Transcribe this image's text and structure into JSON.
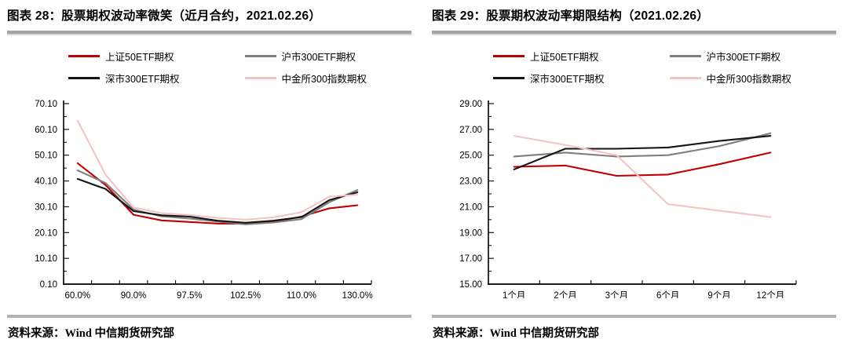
{
  "chart_data": [
    {
      "type": "line",
      "title": "图表 28：股票期权波动率微笑（近月合约，2021.02.26）",
      "source_note": "资料来源：Wind 中信期货研究部",
      "legend_position": "top",
      "grid": false,
      "xlabel": "",
      "ylabel": "",
      "x_tick_labels": [
        "60.0%",
        "",
        "90.0%",
        "",
        "97.5%",
        "",
        "102.5%",
        "",
        "110.0%",
        "",
        "130.0%"
      ],
      "y_axis": {
        "min": 0.1,
        "max": 70.1,
        "major_tick_values": [
          0.1,
          10.1,
          20.1,
          30.1,
          40.1,
          50.1,
          60.1,
          70.1
        ],
        "major_tick_labels": [
          "0.10",
          "10.10",
          "20.10",
          "30.10",
          "40.10",
          "50.10",
          "60.10",
          "70.10"
        ],
        "minor_tick_values": [
          5.1,
          15.1,
          25.1,
          35.1,
          45.1,
          55.1,
          65.1
        ]
      },
      "series": [
        {
          "name": "上证50ETF期权",
          "color": "#C00000",
          "values": [
            47.0,
            38.5,
            27.0,
            24.8,
            24.2,
            23.6,
            23.5,
            24.2,
            26.3,
            29.5,
            30.7
          ]
        },
        {
          "name": "沪市300ETF期权",
          "color": "#7F7F7F",
          "values": [
            44.2,
            39.3,
            29.0,
            26.4,
            25.5,
            24.4,
            23.3,
            24.0,
            25.3,
            31.9,
            36.6
          ]
        },
        {
          "name": "深市300ETF期权",
          "color": "#151515",
          "values": [
            40.9,
            37.0,
            28.4,
            26.8,
            26.3,
            24.7,
            23.9,
            24.7,
            26.1,
            32.7,
            35.7
          ]
        },
        {
          "name": "中金所300指数期权",
          "color": "#F4C3C6",
          "values": [
            63.5,
            42.5,
            29.8,
            27.6,
            26.9,
            25.8,
            25.1,
            26.0,
            28.0,
            34.0,
            34.8
          ]
        }
      ]
    },
    {
      "type": "line",
      "title": "图表 29：股票期权波动率期限结构（2021.02.26）",
      "source_note": "资料来源：Wind 中信期货研究部",
      "legend_position": "top",
      "grid": false,
      "xlabel": "",
      "ylabel": "",
      "x_tick_labels": [
        "1个月",
        "2个月",
        "3个月",
        "6个月",
        "9个月",
        "12个月"
      ],
      "y_axis": {
        "min": 15.0,
        "max": 29.0,
        "major_tick_values": [
          15.0,
          17.0,
          19.0,
          21.0,
          23.0,
          25.0,
          27.0,
          29.0
        ],
        "major_tick_labels": [
          "15.00",
          "17.00",
          "19.00",
          "21.00",
          "23.00",
          "25.00",
          "27.00",
          "29.00"
        ],
        "minor_tick_values": [
          16.0,
          18.0,
          20.0,
          22.0,
          24.0,
          26.0,
          28.0
        ]
      },
      "series": [
        {
          "name": "上证50ETF期权",
          "color": "#C00000",
          "values": [
            24.1,
            24.2,
            23.4,
            23.5,
            24.3,
            25.2
          ]
        },
        {
          "name": "沪市300ETF期权",
          "color": "#7F7F7F",
          "values": [
            24.9,
            25.2,
            24.9,
            25.0,
            25.7,
            26.7
          ]
        },
        {
          "name": "深市300ETF期权",
          "color": "#151515",
          "values": [
            23.9,
            25.5,
            25.5,
            25.6,
            26.1,
            26.5
          ]
        },
        {
          "name": "中金所300指数期权",
          "color": "#F4C3C6",
          "values": [
            26.5,
            25.8,
            25.0,
            21.2,
            20.7,
            20.2
          ]
        }
      ]
    }
  ]
}
